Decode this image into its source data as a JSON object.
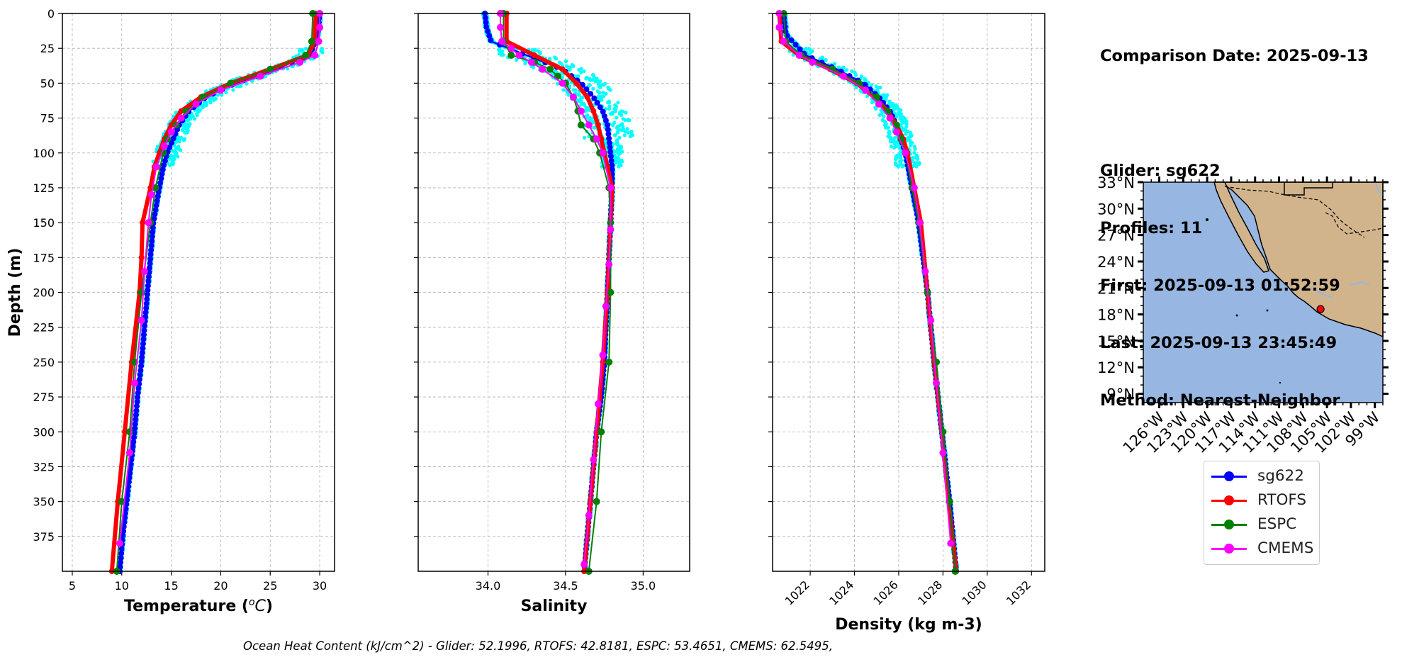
{
  "info": {
    "comparison_date": "Comparison Date: 2025-09-13",
    "glider": "Glider: sg622",
    "profiles": "Profiles: 11",
    "first": "First: 2025-09-13 01:52:59",
    "last": "Last: 2025-09-13 23:45:49",
    "method": "Method: Nearest-Neighbor"
  },
  "footer": "Ocean Heat Content (kJ/cm^2) - Glider: 52.1996,  RTOFS: 42.8181,  ESPC: 53.4651,  CMEMS: 62.5495,",
  "legend": [
    {
      "label": "sg622",
      "color": "#0000ff"
    },
    {
      "label": "RTOFS",
      "color": "#ff0000"
    },
    {
      "label": "ESPC",
      "color": "#008000"
    },
    {
      "label": "CMEMS",
      "color": "#ff00ff"
    }
  ],
  "chart_data": [
    {
      "type": "line",
      "title": "",
      "xlabel": "Temperature (oC)",
      "ylabel": "Depth (m)",
      "xlim": [
        4,
        31.5
      ],
      "ylim": [
        400,
        0
      ],
      "xticks": [
        5,
        10,
        15,
        20,
        25,
        30
      ],
      "yticks": [
        0,
        25,
        50,
        75,
        100,
        125,
        150,
        175,
        200,
        225,
        250,
        275,
        300,
        325,
        350,
        375
      ],
      "grid": true,
      "scatter_color": "#00ffff",
      "series": [
        {
          "name": "sg622",
          "color": "#0000ff",
          "depth": [
            0,
            15,
            30,
            40,
            50,
            60,
            70,
            80,
            90,
            100,
            110,
            125,
            150,
            175,
            200,
            225,
            250,
            275,
            300,
            325,
            350,
            375,
            400
          ],
          "values": [
            30.0,
            29.8,
            29.0,
            25.5,
            21.5,
            18.5,
            16.8,
            15.8,
            15.2,
            14.6,
            14.2,
            13.8,
            13.2,
            12.9,
            12.6,
            12.3,
            12.0,
            11.6,
            11.3,
            10.9,
            10.5,
            10.1,
            9.8
          ]
        },
        {
          "name": "RTOFS",
          "color": "#ff0000",
          "depth": [
            0,
            20,
            30,
            40,
            50,
            60,
            70,
            80,
            90,
            100,
            110,
            125,
            150,
            175,
            200,
            250,
            300,
            350,
            400
          ],
          "values": [
            29.6,
            29.5,
            28.8,
            25.0,
            21.0,
            18.0,
            16.0,
            15.0,
            14.3,
            13.8,
            13.3,
            12.9,
            12.1,
            12.0,
            11.8,
            11.0,
            10.3,
            9.6,
            9.0
          ]
        },
        {
          "name": "ESPC",
          "color": "#008000",
          "depth": [
            0,
            20,
            30,
            40,
            50,
            60,
            70,
            80,
            90,
            100,
            125,
            150,
            200,
            250,
            300,
            350,
            400
          ],
          "values": [
            29.3,
            29.2,
            28.6,
            25.0,
            21.0,
            18.2,
            16.5,
            15.5,
            14.6,
            14.2,
            13.4,
            12.9,
            12.0,
            11.3,
            10.8,
            10.0,
            9.5
          ]
        },
        {
          "name": "CMEMS",
          "color": "#ff00ff",
          "depth": [
            0,
            10,
            20,
            30,
            35,
            45,
            55,
            65,
            75,
            85,
            95,
            110,
            130,
            150,
            185,
            220,
            265,
            315,
            380
          ],
          "values": [
            30.0,
            30.0,
            29.9,
            29.5,
            28.0,
            24.0,
            20.0,
            17.5,
            16.0,
            15.0,
            14.3,
            13.5,
            13.0,
            12.7,
            12.3,
            12.0,
            11.3,
            10.8,
            9.8
          ]
        }
      ]
    },
    {
      "type": "line",
      "title": "",
      "xlabel": "Salinity",
      "ylabel": "",
      "xlim": [
        33.55,
        35.3
      ],
      "ylim": [
        400,
        0
      ],
      "xticks": [
        34.0,
        34.5,
        35.0
      ],
      "yticks": [
        0,
        25,
        50,
        75,
        100,
        125,
        150,
        175,
        200,
        225,
        250,
        275,
        300,
        325,
        350,
        375
      ],
      "grid": true,
      "scatter_color": "#00ffff",
      "series": [
        {
          "name": "sg622",
          "color": "#0000ff",
          "depth": [
            0,
            10,
            20,
            30,
            40,
            50,
            60,
            70,
            80,
            90,
            100,
            110,
            125,
            150,
            175,
            200,
            225,
            250,
            275,
            300,
            325,
            350,
            375,
            400
          ],
          "values": [
            33.98,
            33.99,
            34.02,
            34.25,
            34.48,
            34.6,
            34.68,
            34.74,
            34.77,
            34.78,
            34.79,
            34.8,
            34.8,
            34.79,
            34.78,
            34.77,
            34.76,
            34.75,
            34.73,
            34.7,
            34.68,
            34.66,
            34.64,
            34.62
          ]
        },
        {
          "name": "RTOFS",
          "color": "#ff0000",
          "depth": [
            0,
            20,
            30,
            40,
            50,
            60,
            70,
            80,
            90,
            100,
            110,
            125,
            150,
            200,
            250,
            300,
            350,
            400
          ],
          "values": [
            34.12,
            34.12,
            34.3,
            34.48,
            34.57,
            34.64,
            34.68,
            34.71,
            34.73,
            34.75,
            34.77,
            34.8,
            34.79,
            34.77,
            34.74,
            34.7,
            34.66,
            34.62
          ]
        },
        {
          "name": "ESPC",
          "color": "#008000",
          "depth": [
            0,
            20,
            30,
            35,
            40,
            45,
            50,
            60,
            70,
            80,
            90,
            100,
            125,
            150,
            200,
            250,
            300,
            350,
            400
          ],
          "values": [
            34.1,
            34.1,
            34.15,
            34.3,
            34.4,
            34.45,
            34.5,
            34.55,
            34.58,
            34.6,
            34.68,
            34.72,
            34.78,
            34.79,
            34.79,
            34.78,
            34.73,
            34.7,
            34.65
          ]
        },
        {
          "name": "CMEMS",
          "color": "#ff00ff",
          "depth": [
            0,
            10,
            20,
            25,
            30,
            35,
            40,
            50,
            60,
            70,
            80,
            90,
            100,
            125,
            155,
            180,
            210,
            245,
            280,
            320,
            360,
            395
          ],
          "values": [
            34.08,
            34.08,
            34.09,
            34.15,
            34.2,
            34.28,
            34.35,
            34.48,
            34.55,
            34.6,
            34.65,
            34.7,
            34.74,
            34.79,
            34.79,
            34.78,
            34.76,
            34.74,
            34.71,
            34.68,
            34.65,
            34.62
          ]
        }
      ]
    },
    {
      "type": "line",
      "title": "",
      "xlabel": "Density (kg m-3)",
      "ylabel": "",
      "xlim": [
        1020.3,
        1032.6
      ],
      "ylim": [
        400,
        0
      ],
      "xticks": [
        1022,
        1024,
        1026,
        1028,
        1030,
        1032
      ],
      "yticks": [
        0,
        25,
        50,
        75,
        100,
        125,
        150,
        175,
        200,
        225,
        250,
        275,
        300,
        325,
        350,
        375
      ],
      "grid": true,
      "scatter_color": "#00ffff",
      "series": [
        {
          "name": "sg622",
          "color": "#0000ff",
          "depth": [
            0,
            15,
            30,
            40,
            50,
            60,
            70,
            80,
            90,
            100,
            125,
            150,
            200,
            250,
            300,
            350,
            400
          ],
          "values": [
            1020.8,
            1020.9,
            1021.8,
            1023.2,
            1024.4,
            1025.1,
            1025.6,
            1025.9,
            1026.1,
            1026.3,
            1026.6,
            1026.9,
            1027.3,
            1027.6,
            1027.95,
            1028.3,
            1028.6
          ]
        },
        {
          "name": "RTOFS",
          "color": "#ff0000",
          "depth": [
            0,
            20,
            30,
            40,
            50,
            60,
            70,
            80,
            90,
            100,
            125,
            150,
            200,
            250,
            300,
            350,
            400
          ],
          "values": [
            1020.6,
            1020.7,
            1021.5,
            1022.9,
            1024.1,
            1024.9,
            1025.5,
            1025.9,
            1026.2,
            1026.4,
            1026.7,
            1027.0,
            1027.3,
            1027.6,
            1027.95,
            1028.25,
            1028.6
          ]
        },
        {
          "name": "ESPC",
          "color": "#008000",
          "depth": [
            0,
            20,
            30,
            40,
            50,
            60,
            70,
            80,
            90,
            100,
            125,
            150,
            200,
            250,
            300,
            350,
            400
          ],
          "values": [
            1020.8,
            1020.9,
            1021.6,
            1023.0,
            1024.2,
            1025.0,
            1025.5,
            1025.9,
            1026.1,
            1026.3,
            1026.6,
            1026.9,
            1027.3,
            1027.7,
            1028.0,
            1028.3,
            1028.55
          ]
        },
        {
          "name": "CMEMS",
          "color": "#ff00ff",
          "depth": [
            0,
            10,
            20,
            30,
            35,
            45,
            55,
            65,
            75,
            85,
            100,
            125,
            150,
            185,
            220,
            265,
            315,
            380
          ],
          "values": [
            1020.6,
            1020.6,
            1020.8,
            1021.5,
            1022.1,
            1023.5,
            1024.5,
            1025.1,
            1025.6,
            1025.9,
            1026.3,
            1026.7,
            1026.95,
            1027.2,
            1027.45,
            1027.7,
            1028.0,
            1028.35
          ]
        }
      ]
    },
    {
      "type": "map",
      "title": "",
      "lon_range": [
        -128,
        -98
      ],
      "lat_range": [
        8,
        33
      ],
      "lon_ticks": [
        "126°W",
        "123°W",
        "120°W",
        "117°W",
        "114°W",
        "111°W",
        "108°W",
        "105°W",
        "102°W",
        "99°W"
      ],
      "lat_ticks": [
        "33°N",
        "30°N",
        "27°N",
        "24°N",
        "21°N",
        "18°N",
        "15°N",
        "12°N",
        "9°N"
      ],
      "lon_tick_values": [
        -126,
        -123,
        -120,
        -117,
        -114,
        -111,
        -108,
        -105,
        -102,
        -99
      ],
      "lat_tick_values": [
        33,
        30,
        27,
        24,
        21,
        18,
        15,
        12,
        9
      ],
      "ocean_color": "#97b6e1",
      "land_color": "#d2b48c",
      "marker": {
        "lon": -105.8,
        "lat": 18.6,
        "color": "#ff0000"
      }
    }
  ]
}
